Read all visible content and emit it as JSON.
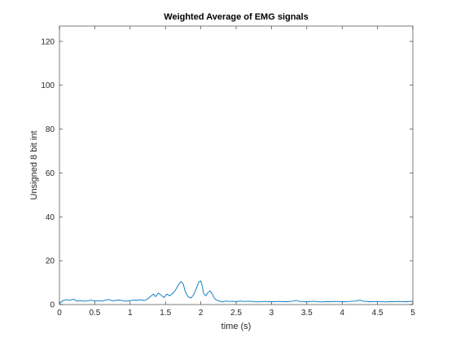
{
  "chart_data": {
    "type": "line",
    "title": "Weighted Average of EMG signals",
    "xlabel": "time (s)",
    "ylabel": "Unsigned 8 bit int",
    "xlim": [
      0,
      5
    ],
    "ylim": [
      0,
      127
    ],
    "x_ticks": [
      0,
      0.5,
      1,
      1.5,
      2,
      2.5,
      3,
      3.5,
      4,
      4.5,
      5
    ],
    "x_tick_labels": [
      "0",
      "0.5",
      "1",
      "1.5",
      "2",
      "2.5",
      "3",
      "3.5",
      "4",
      "4.5",
      "5"
    ],
    "y_ticks": [
      0,
      20,
      40,
      60,
      80,
      100,
      120
    ],
    "y_tick_labels": [
      "0",
      "20",
      "40",
      "60",
      "80",
      "100",
      "120"
    ],
    "grid": false,
    "line_color": "#0072BD",
    "series": [
      {
        "x": [
          0,
          0.05,
          0.1,
          0.15,
          0.2,
          0.25,
          0.3,
          0.35,
          0.4,
          0.45,
          0.5,
          0.55,
          0.6,
          0.65,
          0.7,
          0.75,
          0.8,
          0.85,
          0.9,
          0.95,
          1.0,
          1.05,
          1.1,
          1.15,
          1.2,
          1.25,
          1.3,
          1.33,
          1.36,
          1.4,
          1.44,
          1.48,
          1.52,
          1.56,
          1.6,
          1.64,
          1.68,
          1.72,
          1.75,
          1.78,
          1.82,
          1.86,
          1.9,
          1.94,
          1.97,
          2.0,
          2.02,
          2.04,
          2.07,
          2.1,
          2.13,
          2.16,
          2.19,
          2.22,
          2.25,
          2.3,
          2.35,
          2.4,
          2.45,
          2.5,
          2.55,
          2.6,
          2.7,
          2.8,
          2.9,
          3.0,
          3.1,
          3.2,
          3.3,
          3.35,
          3.4,
          3.5,
          3.6,
          3.7,
          3.8,
          3.9,
          4.0,
          4.1,
          4.2,
          4.25,
          4.3,
          4.4,
          4.5,
          4.6,
          4.7,
          4.8,
          4.9,
          5.0
        ],
        "y": [
          0.5,
          1.8,
          2.2,
          2.0,
          2.4,
          1.6,
          1.8,
          1.5,
          1.7,
          2.0,
          1.6,
          1.8,
          1.5,
          2.0,
          2.3,
          1.7,
          1.9,
          2.1,
          1.7,
          1.5,
          1.8,
          2.0,
          1.9,
          2.2,
          1.8,
          2.6,
          4.0,
          4.8,
          3.6,
          5.2,
          4.2,
          3.2,
          4.8,
          4.0,
          5.0,
          6.5,
          8.8,
          10.5,
          9.5,
          6.0,
          3.5,
          3.0,
          4.5,
          7.5,
          10.2,
          10.8,
          8.5,
          5.0,
          4.0,
          5.5,
          6.2,
          5.0,
          3.0,
          2.0,
          1.8,
          1.2,
          1.6,
          1.4,
          1.5,
          1.3,
          1.6,
          1.4,
          1.5,
          1.2,
          1.4,
          1.3,
          1.4,
          1.3,
          1.5,
          1.9,
          1.4,
          1.3,
          1.5,
          1.2,
          1.3,
          1.4,
          1.3,
          1.4,
          1.6,
          2.0,
          1.5,
          1.3,
          1.4,
          1.2,
          1.3,
          1.4,
          1.3,
          1.5
        ]
      }
    ]
  }
}
